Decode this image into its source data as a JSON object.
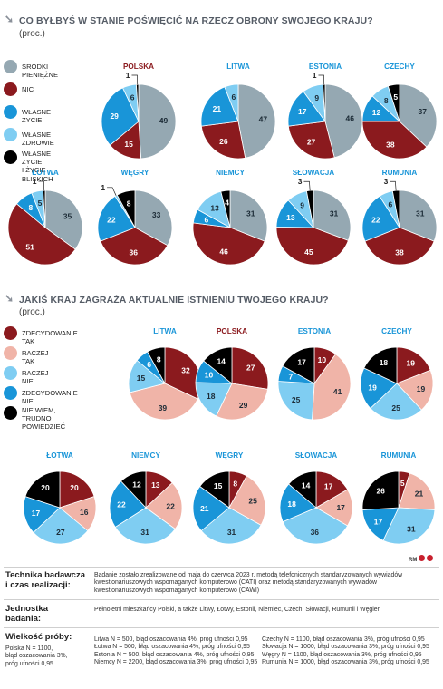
{
  "section1": {
    "title": "CO BYŁBYŚ W STANIE POŚWIĘCIĆ NA RZECZ OBRONY SWOJEGO KRAJU?",
    "subtitle": "(proc.)",
    "legend": [
      {
        "label": "ŚRODKI PIENIĘŻNE",
        "color": "#95a8b2"
      },
      {
        "label": "NIC",
        "color": "#8b1a1e"
      },
      {
        "label": "WŁASNE ŻYCIE",
        "color": "#1995d8"
      },
      {
        "label": "WŁASNE ZDROWIE",
        "color": "#7fcdf2"
      },
      {
        "label": "WŁASNE ŻYCIE\nI ŻYCIE BLISKICH",
        "color": "#000000"
      }
    ]
  },
  "section2": {
    "title": "JAKIŚ KRAJ ZAGRAŻA AKTUALNIE ISTNIENIU TWOJEGO KRAJU?",
    "subtitle": "(proc.)",
    "legend": [
      {
        "label": "ZDECYDOWANIE TAK",
        "color": "#8b1a1e"
      },
      {
        "label": "RACZEJ TAK",
        "color": "#f0b4a8"
      },
      {
        "label": "RACZEJ NIE",
        "color": "#7fcdf2"
      },
      {
        "label": "ZDECYDOWANIE NIE",
        "color": "#1995d8"
      },
      {
        "label": "NIE WIEM,\nTRUDNO POWIEDZIEĆ",
        "color": "#000000"
      }
    ]
  },
  "chart_data": [
    {
      "type": "pie",
      "title": "CO BYŁBYŚ W STANIE POŚWIĘCIĆ NA RZECZ OBRONY SWOJEGO KRAJU?",
      "series_names": [
        "ŚRODKI PIENIĘŻNE",
        "NIC",
        "WŁASNE ŻYCIE",
        "WŁASNE ZDROWIE",
        "WŁASNE ŻYCIE I ŻYCIE BLISKICH"
      ],
      "colors": [
        "#95a8b2",
        "#8b1a1e",
        "#1995d8",
        "#7fcdf2",
        "#000000"
      ],
      "pies": [
        {
          "country": "POLSKA",
          "highlight": true,
          "values": [
            49,
            15,
            29,
            6,
            1
          ]
        },
        {
          "country": "LITWA",
          "highlight": false,
          "values": [
            47,
            26,
            21,
            6,
            0
          ]
        },
        {
          "country": "ESTONIA",
          "highlight": false,
          "values": [
            46,
            27,
            17,
            9,
            1
          ]
        },
        {
          "country": "CZECHY",
          "highlight": false,
          "values": [
            37,
            38,
            12,
            8,
            5
          ]
        },
        {
          "country": "ŁOTWA",
          "highlight": false,
          "values": [
            35,
            51,
            8,
            5,
            1
          ]
        },
        {
          "country": "WĘGRY",
          "highlight": false,
          "values": [
            33,
            36,
            22,
            1,
            8
          ]
        },
        {
          "country": "NIEMCY",
          "highlight": false,
          "values": [
            31,
            46,
            6,
            13,
            4
          ]
        },
        {
          "country": "SŁOWACJA",
          "highlight": false,
          "values": [
            31,
            45,
            13,
            9,
            3
          ]
        },
        {
          "country": "RUMUNIA",
          "highlight": false,
          "values": [
            31,
            38,
            22,
            6,
            3
          ]
        }
      ]
    },
    {
      "type": "pie",
      "title": "JAKIŚ KRAJ ZAGRAŻA AKTUALNIE ISTNIENIU TWOJEGO KRAJU?",
      "series_names": [
        "ZDECYDOWANIE TAK",
        "RACZEJ TAK",
        "RACZEJ NIE",
        "ZDECYDOWANIE NIE",
        "NIE WIEM, TRUDNO POWIEDZIEĆ"
      ],
      "colors": [
        "#8b1a1e",
        "#f0b4a8",
        "#7fcdf2",
        "#1995d8",
        "#000000"
      ],
      "pies": [
        {
          "country": "LITWA",
          "highlight": false,
          "values": [
            32,
            39,
            15,
            6,
            8
          ]
        },
        {
          "country": "POLSKA",
          "highlight": true,
          "values": [
            27,
            29,
            18,
            10,
            14
          ]
        },
        {
          "country": "ESTONIA",
          "highlight": false,
          "values": [
            10,
            41,
            25,
            7,
            17
          ]
        },
        {
          "country": "CZECHY",
          "highlight": false,
          "values": [
            19,
            19,
            25,
            19,
            18
          ]
        },
        {
          "country": "ŁOTWA",
          "highlight": false,
          "values": [
            20,
            16,
            27,
            17,
            20
          ]
        },
        {
          "country": "NIEMCY",
          "highlight": false,
          "values": [
            13,
            22,
            31,
            22,
            12
          ]
        },
        {
          "country": "WĘGRY",
          "highlight": false,
          "values": [
            8,
            25,
            31,
            21,
            15
          ]
        },
        {
          "country": "SŁOWACJA",
          "highlight": false,
          "values": [
            17,
            17,
            36,
            18,
            14
          ]
        },
        {
          "country": "RUMUNIA",
          "highlight": false,
          "values": [
            5,
            21,
            31,
            17,
            26
          ]
        }
      ]
    }
  ],
  "credit": "RM",
  "footer": {
    "method_label": "Technika badawcza\ni czas realizacji:",
    "method_text": "Badanie zostało zrealizowane od maja do czerwca 2023 r. metodą telefonicznych standaryzowanych wywiadów kwestionariuszowych wspomaganych komputerowo (CATI) oraz metodą standaryzowanych wywiadów kwestionariuszowych wspomaganych komputerowo (CAWI)",
    "unit_label": "Jednostka\nbadania:",
    "unit_text": "Pełnoletni mieszkańcy Polski, a także Litwy, Łotwy, Estonii, Niemiec, Czech, Słowacji, Rumunii i Węgier",
    "sample_label": "Wielkość próby:",
    "sample_poland": "Polska N = 1100,\nbłąd oszacowania 3%,\npróg ufności 0,95",
    "sample_col2": "Litwa N = 500, błąd oszacowania 4%, próg ufności 0,95\nŁotwa N = 500, błąd oszacowania 4%, próg ufności 0,95\nEstonia N = 500, błąd oszacowania 4%, próg ufności 0,95\nNiemcy N = 2200, błąd oszacowania 3%, próg ufności 0,95",
    "sample_col3": "Czechy N = 1100, błąd oszacowania 3%, próg ufności 0,95\nSłowacja N = 1000, błąd oszacowania 3%, próg ufności 0,95\nWęgry N = 1100, błąd oszacowania 3%, próg ufności 0,95\nRumunia N = 1000, błąd oszacowania 3%, próg ufności 0,95"
  }
}
